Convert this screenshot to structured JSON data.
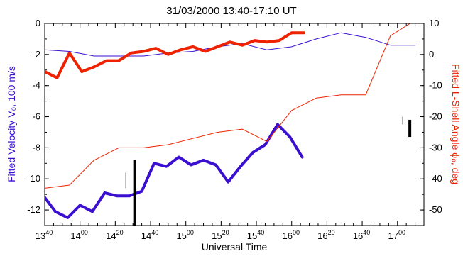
{
  "chart_data": {
    "type": "line",
    "title": "31/03/2000 13:40-17:10 UT",
    "xlabel": "Universal Time",
    "ylabel_left": "Fitted Velocity V₀, 100 m/s",
    "ylabel_right": "Fitted L-Shell Angle ϕ₀, deg",
    "x_range_minutes": [
      820,
      1035
    ],
    "left_axis": {
      "ylim": [
        -13,
        0
      ],
      "ticks": [
        0,
        -2,
        -4,
        -6,
        -8,
        -10,
        -12
      ]
    },
    "right_axis": {
      "ylim": [
        -55,
        10
      ],
      "ticks": [
        10,
        0,
        -10,
        -20,
        -30,
        -40,
        -50
      ]
    },
    "x_ticks": [
      {
        "m": 820,
        "hour": "13",
        "min": "40"
      },
      {
        "m": 840,
        "hour": "14",
        "min": "00"
      },
      {
        "m": 860,
        "hour": "14",
        "min": "20"
      },
      {
        "m": 880,
        "hour": "14",
        "min": "40"
      },
      {
        "m": 900,
        "hour": "15",
        "min": "00"
      },
      {
        "m": 920,
        "hour": "15",
        "min": "20"
      },
      {
        "m": 940,
        "hour": "15",
        "min": "40"
      },
      {
        "m": 960,
        "hour": "16",
        "min": "00"
      },
      {
        "m": 980,
        "hour": "16",
        "min": "20"
      },
      {
        "m": 1000,
        "hour": "16",
        "min": "40"
      },
      {
        "m": 1020,
        "hour": "17",
        "min": "00"
      }
    ],
    "series": [
      {
        "axis": "left",
        "color": "#3a0fd0",
        "width": 4,
        "x": [
          820,
          827,
          834,
          841,
          848,
          855,
          862,
          869,
          876,
          883,
          890,
          897,
          904,
          911,
          918,
          925,
          932,
          939,
          946,
          953,
          960,
          967,
          974,
          981,
          988,
          995,
          1002,
          1009,
          1016,
          1023
        ],
        "y": [
          -11.2,
          -12.1,
          -12.5,
          -11.7,
          -12.1,
          -10.9,
          -11.1,
          -11.1,
          -10.8,
          -9.0,
          -9.2,
          -8.6,
          -9.1,
          -8.8,
          -9.1,
          -10.2,
          -9.2,
          -8.3,
          -7.8,
          -6.5,
          -7.3,
          -8.6,
          null,
          null,
          null,
          null,
          null,
          null,
          null,
          null
        ],
        "x_override": [
          820,
          826,
          833,
          840,
          847,
          854,
          861,
          868,
          875,
          882,
          889,
          896,
          903,
          910,
          917,
          924,
          931,
          938,
          945,
          952,
          959,
          966
        ]
      },
      {
        "axis": "left",
        "color": "#3a0fd0",
        "width": 1,
        "x": [
          820,
          834,
          848,
          862,
          876,
          890,
          904,
          918,
          932,
          946,
          960,
          974,
          988,
          1002,
          1016,
          1030
        ],
        "y": [
          -1.7,
          -1.8,
          -2.1,
          -2.1,
          -2.1,
          -1.9,
          -1.8,
          -1.5,
          -1.3,
          -1.7,
          -1.5,
          -1.0,
          -0.6,
          -0.9,
          -1.4,
          -1.4
        ]
      },
      {
        "axis": "right",
        "color": "#ee2200",
        "width": 4,
        "x": [
          820,
          827,
          834,
          841,
          848,
          855,
          862,
          869,
          876,
          883,
          890,
          897,
          904,
          911,
          918,
          925,
          932,
          939,
          946,
          953,
          960,
          967
        ],
        "y": [
          -5.5,
          -7.5,
          0.5,
          -5.5,
          -4.0,
          -2.0,
          -2.0,
          0.5,
          1.0,
          2.0,
          0.0,
          1.5,
          2.5,
          1.0,
          2.5,
          4.0,
          3.0,
          4.5,
          4.0,
          4.5,
          7.0,
          7.0
        ]
      },
      {
        "axis": "right",
        "color": "#ee2200",
        "width": 1,
        "x": [
          820,
          834,
          848,
          862,
          876,
          890,
          904,
          918,
          932,
          946,
          960,
          974,
          988,
          1002,
          1016,
          1030
        ],
        "y": [
          -43,
          -42,
          -34,
          -30,
          -30,
          -29,
          -27,
          -25,
          -24,
          -28,
          -18,
          -14,
          -13,
          -13,
          6,
          11
        ]
      }
    ],
    "markers": [
      {
        "axis": "left",
        "x": 871,
        "y0": -8.8,
        "y1": -13.0,
        "width": 4,
        "color": "#000000"
      },
      {
        "axis": "left",
        "x": 866,
        "y0": -9.6,
        "y1": -10.6,
        "width": 1,
        "color": "#000000"
      },
      {
        "axis": "left",
        "x": 1027,
        "y0": -6.2,
        "y1": -7.3,
        "width": 4,
        "color": "#000000"
      },
      {
        "axis": "left",
        "x": 1023,
        "y0": -6.0,
        "y1": -6.5,
        "width": 1,
        "color": "#000000"
      }
    ]
  }
}
